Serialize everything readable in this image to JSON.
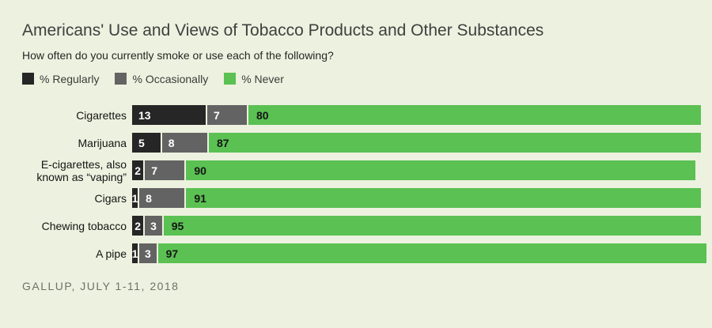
{
  "page": {
    "title": "Americans' Use and Views of Tobacco Products and Other Substances",
    "subtitle": "How often do you currently smoke or use each of the following?",
    "source": "GALLUP, JULY 1-11, 2018"
  },
  "colors": {
    "background": "#edf1df",
    "regularly": "#262626",
    "occasionally": "#636363",
    "never": "#5ac152",
    "value_label_on_dark": "#ffffff",
    "value_label_on_green": "#151515"
  },
  "legend": [
    {
      "label": "% Regularly",
      "color_key": "regularly"
    },
    {
      "label": "% Occasionally",
      "color_key": "occasionally"
    },
    {
      "label": "% Never",
      "color_key": "never"
    }
  ],
  "chart_data": {
    "type": "bar",
    "orientation": "horizontal",
    "stacked": true,
    "title": "Americans' Use and Views of Tobacco Products and Other Substances",
    "subtitle": "How often do you currently smoke or use each of the following?",
    "source": "GALLUP, JULY 1-11, 2018",
    "categories": [
      "Cigarettes",
      "Marijuana",
      "E-cigarettes, also\nknown as “vaping”",
      "Cigars",
      "Chewing tobacco",
      "A pipe"
    ],
    "series": [
      {
        "name": "% Regularly",
        "values": [
          13,
          5,
          2,
          1,
          2,
          1
        ]
      },
      {
        "name": "% Occasionally",
        "values": [
          7,
          8,
          7,
          8,
          3,
          3
        ]
      },
      {
        "name": "% Never",
        "values": [
          80,
          87,
          90,
          91,
          95,
          97
        ]
      }
    ],
    "xlim": [
      0,
      102
    ],
    "grid": false,
    "legend_position": "top-left",
    "value_labels": "inside-start"
  }
}
